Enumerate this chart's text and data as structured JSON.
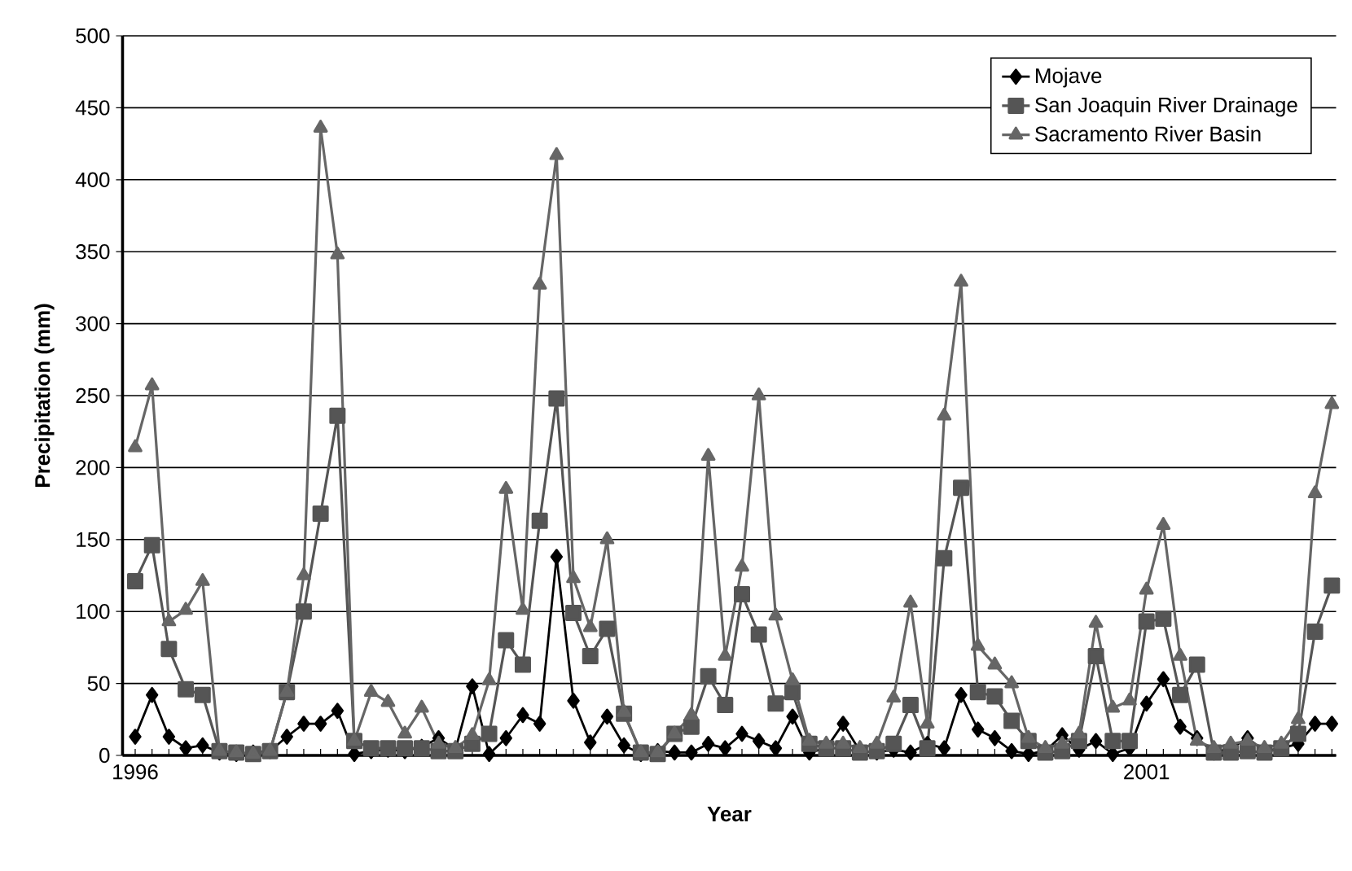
{
  "chart_data": {
    "type": "line",
    "xlabel": "Year",
    "ylabel": "Precipitation (mm)",
    "categories": [
      "1996",
      null,
      null,
      null,
      null,
      null,
      null,
      null,
      null,
      null,
      null,
      null,
      null,
      null,
      null,
      null,
      null,
      null,
      null,
      null,
      null,
      null,
      null,
      null,
      null,
      null,
      null,
      null,
      null,
      null,
      null,
      null,
      null,
      null,
      null,
      null,
      null,
      null,
      null,
      null,
      null,
      null,
      null,
      null,
      null,
      null,
      null,
      null,
      null,
      null,
      null,
      null,
      null,
      null,
      null,
      null,
      null,
      null,
      null,
      null,
      "2001",
      null,
      null,
      null,
      null,
      null,
      null,
      null,
      null,
      null,
      null,
      null
    ],
    "ylim": [
      0,
      500
    ],
    "yticks": [
      0,
      50,
      100,
      150,
      200,
      250,
      300,
      350,
      400,
      450,
      500
    ],
    "grid": "y",
    "legend": "top right",
    "series": [
      {
        "name": "Mojave",
        "color": "#000000",
        "marker": "diamond",
        "values": [
          13,
          42,
          13,
          5,
          7,
          2,
          1,
          2,
          3,
          13,
          22,
          22,
          31,
          1,
          3,
          4,
          3,
          6,
          12,
          4,
          48,
          1,
          12,
          28,
          22,
          138,
          38,
          9,
          27,
          7,
          1,
          3,
          2,
          2,
          8,
          5,
          15,
          10,
          5,
          27,
          2,
          5,
          22,
          3,
          2,
          4,
          2,
          8,
          5,
          42,
          18,
          12,
          3,
          1,
          3,
          14,
          4,
          10,
          1,
          5,
          36,
          53,
          20,
          12,
          2,
          5,
          12,
          3,
          5,
          8,
          22,
          22
        ]
      },
      {
        "name": "San Joaquin River Drainage",
        "color": "#555555",
        "marker": "square",
        "values": [
          121,
          146,
          74,
          46,
          42,
          3,
          2,
          1,
          3,
          44,
          100,
          168,
          236,
          10,
          5,
          5,
          5,
          5,
          3,
          3,
          8,
          15,
          80,
          63,
          163,
          248,
          99,
          69,
          88,
          29,
          2,
          1,
          15,
          20,
          55,
          35,
          112,
          84,
          36,
          44,
          8,
          5,
          5,
          2,
          3,
          8,
          35,
          5,
          137,
          186,
          44,
          41,
          24,
          10,
          2,
          3,
          10,
          69,
          10,
          10,
          93,
          95,
          42,
          63,
          2,
          2,
          3,
          2,
          5,
          15,
          86,
          118
        ]
      },
      {
        "name": "Sacramento River Basin",
        "color": "#666666",
        "marker": "triangle",
        "values": [
          214,
          257,
          93,
          101,
          121,
          3,
          2,
          1,
          3,
          44,
          125,
          436,
          348,
          10,
          44,
          37,
          15,
          33,
          8,
          5,
          14,
          52,
          185,
          101,
          327,
          417,
          123,
          89,
          150,
          30,
          2,
          2,
          15,
          28,
          208,
          69,
          131,
          250,
          97,
          52,
          10,
          8,
          8,
          5,
          8,
          40,
          106,
          22,
          236,
          329,
          76,
          63,
          50,
          12,
          5,
          8,
          15,
          92,
          33,
          38,
          115,
          160,
          69,
          10,
          5,
          8,
          10,
          5,
          8,
          25,
          182,
          244
        ]
      }
    ]
  }
}
